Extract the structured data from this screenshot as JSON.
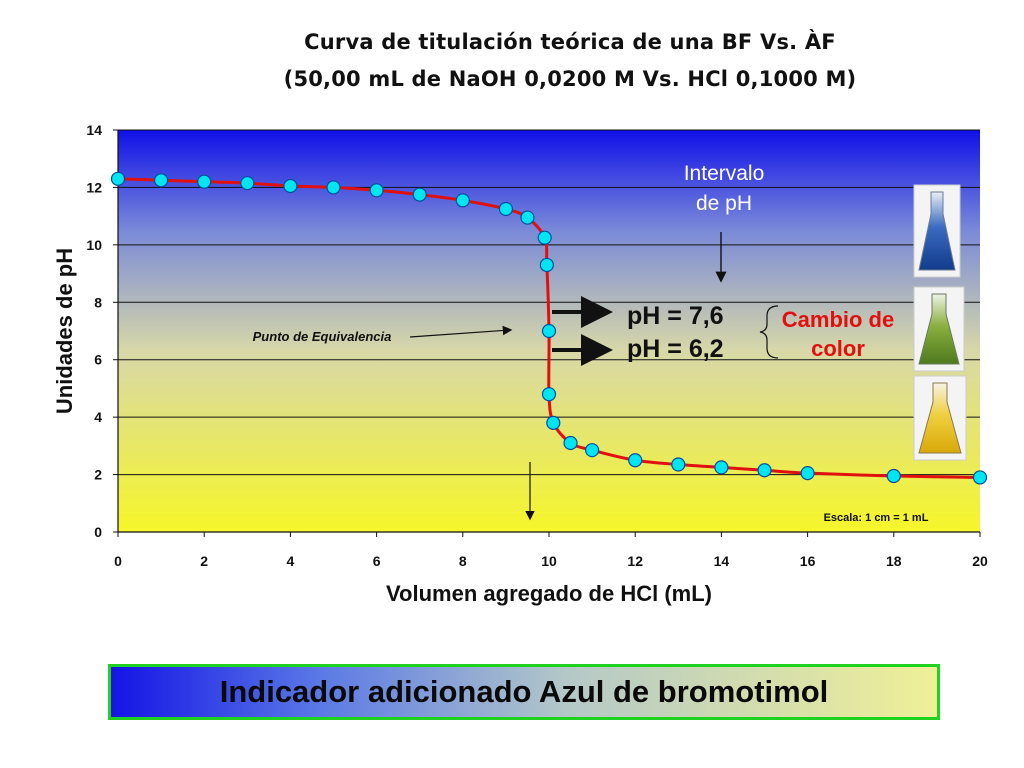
{
  "title_line1": "Curva de titulación teórica de una BF Vs. ÀF",
  "title_line2": "(50,00 mL de NaOH 0,0200 M Vs. HCl 0,1000 M)",
  "banner_text": "Indicador adicionado Azul de bromotimol",
  "colors": {
    "curve": "#e01010",
    "marker_fill": "#00e5f0",
    "marker_stroke": "#0050a0",
    "annotation_red": "#e01010",
    "banner_border": "#1fd21f"
  },
  "chart_data": {
    "type": "line",
    "xlabel": "Volumen agregado de HCl (mL)",
    "ylabel": "Unidades de pH",
    "xlim": [
      0,
      20
    ],
    "ylim": [
      0,
      14
    ],
    "xticks": [
      0,
      2,
      4,
      6,
      8,
      10,
      12,
      14,
      16,
      18,
      20
    ],
    "yticks": [
      0,
      2,
      4,
      6,
      8,
      10,
      12,
      14
    ],
    "grid": "horizontal",
    "series": [
      {
        "x": [
          0,
          1,
          2,
          3,
          4,
          5,
          6,
          7,
          8,
          9,
          9.5,
          9.9,
          9.95,
          10,
          10,
          10.1,
          10.5,
          11,
          12,
          13,
          14,
          15,
          16,
          18,
          20
        ],
        "y": [
          12.3,
          12.25,
          12.2,
          12.15,
          12.05,
          12.0,
          11.9,
          11.75,
          11.55,
          11.25,
          10.95,
          10.25,
          9.3,
          7.0,
          4.8,
          3.8,
          3.1,
          2.85,
          2.5,
          2.35,
          2.25,
          2.15,
          2.05,
          1.95,
          1.9
        ]
      }
    ],
    "annotations": {
      "equivalence": "Punto de Equivalencia",
      "interval_line1": "Intervalo",
      "interval_line2": "de pH",
      "ph_high": "pH = 7,6",
      "ph_low": "pH = 6,2",
      "color_change_line1": "Cambio de",
      "color_change_line2": "color",
      "scale_note": "Escala: 1 cm = 1 mL"
    }
  }
}
